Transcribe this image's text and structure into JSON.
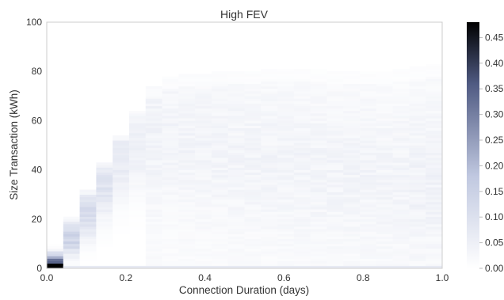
{
  "chart_data": {
    "type": "heatmap",
    "title": "High FEV",
    "xlabel": "Connection Duration (days)",
    "ylabel": "Size Transaction (kWh)",
    "xlim": [
      0.0,
      1.0
    ],
    "ylim": [
      0,
      100
    ],
    "x_ticks": [
      "0.0",
      "0.2",
      "0.4",
      "0.6",
      "0.8",
      "1.0"
    ],
    "y_ticks": [
      "0",
      "20",
      "40",
      "60",
      "80",
      "100"
    ],
    "x_bin_width": 0.04167,
    "y_bin_width": 1,
    "colorbar": {
      "min": 0.0,
      "max": 0.48,
      "ticks": [
        "0.00",
        "0.05",
        "0.10",
        "0.15",
        "0.20",
        "0.25",
        "0.30",
        "0.35",
        "0.40",
        "0.45"
      ],
      "colormap": "bone_r",
      "low_color": "#ffffff",
      "high_color": "#000000"
    },
    "columns": [
      {
        "x0": 0.0,
        "ymax": 10,
        "peak_y": 1,
        "peak_value": 0.48
      },
      {
        "x0": 0.0417,
        "ymax": 21,
        "peak_y": 12,
        "peak_value": 0.15
      },
      {
        "x0": 0.0833,
        "ymax": 32,
        "peak_y": 22,
        "peak_value": 0.11
      },
      {
        "x0": 0.125,
        "ymax": 43,
        "peak_y": 33,
        "peak_value": 0.085
      },
      {
        "x0": 0.1667,
        "ymax": 54,
        "peak_y": 44,
        "peak_value": 0.065
      },
      {
        "x0": 0.2083,
        "ymax": 64,
        "peak_y": 50,
        "peak_value": 0.05
      },
      {
        "x0": 0.25,
        "ymax": 74,
        "peak_y": 55,
        "peak_value": 0.04
      },
      {
        "x0": 0.2917,
        "ymax": 78,
        "peak_y": 55,
        "peak_value": 0.035
      },
      {
        "x0": 0.3333,
        "ymax": 79,
        "peak_y": 52,
        "peak_value": 0.035
      },
      {
        "x0": 0.375,
        "ymax": 79,
        "peak_y": 50,
        "peak_value": 0.035
      },
      {
        "x0": 0.4167,
        "ymax": 80,
        "peak_y": 48,
        "peak_value": 0.035
      },
      {
        "x0": 0.4583,
        "ymax": 80,
        "peak_y": 46,
        "peak_value": 0.035
      },
      {
        "x0": 0.5,
        "ymax": 80,
        "peak_y": 45,
        "peak_value": 0.035
      },
      {
        "x0": 0.5417,
        "ymax": 81,
        "peak_y": 44,
        "peak_value": 0.035
      },
      {
        "x0": 0.5833,
        "ymax": 81,
        "peak_y": 42,
        "peak_value": 0.035
      },
      {
        "x0": 0.625,
        "ymax": 81,
        "peak_y": 42,
        "peak_value": 0.035
      },
      {
        "x0": 0.6667,
        "ymax": 81,
        "peak_y": 40,
        "peak_value": 0.035
      },
      {
        "x0": 0.7083,
        "ymax": 80,
        "peak_y": 40,
        "peak_value": 0.035
      },
      {
        "x0": 0.75,
        "ymax": 80,
        "peak_y": 38,
        "peak_value": 0.035
      },
      {
        "x0": 0.7917,
        "ymax": 80,
        "peak_y": 38,
        "peak_value": 0.035
      },
      {
        "x0": 0.8333,
        "ymax": 80,
        "peak_y": 36,
        "peak_value": 0.035
      },
      {
        "x0": 0.875,
        "ymax": 81,
        "peak_y": 36,
        "peak_value": 0.035
      },
      {
        "x0": 0.9167,
        "ymax": 82,
        "peak_y": 35,
        "peak_value": 0.04
      },
      {
        "x0": 0.9583,
        "ymax": 83,
        "peak_y": 35,
        "peak_value": 0.04
      }
    ],
    "baseline_band": {
      "y": [
        0,
        1
      ],
      "value": 0.07
    }
  }
}
